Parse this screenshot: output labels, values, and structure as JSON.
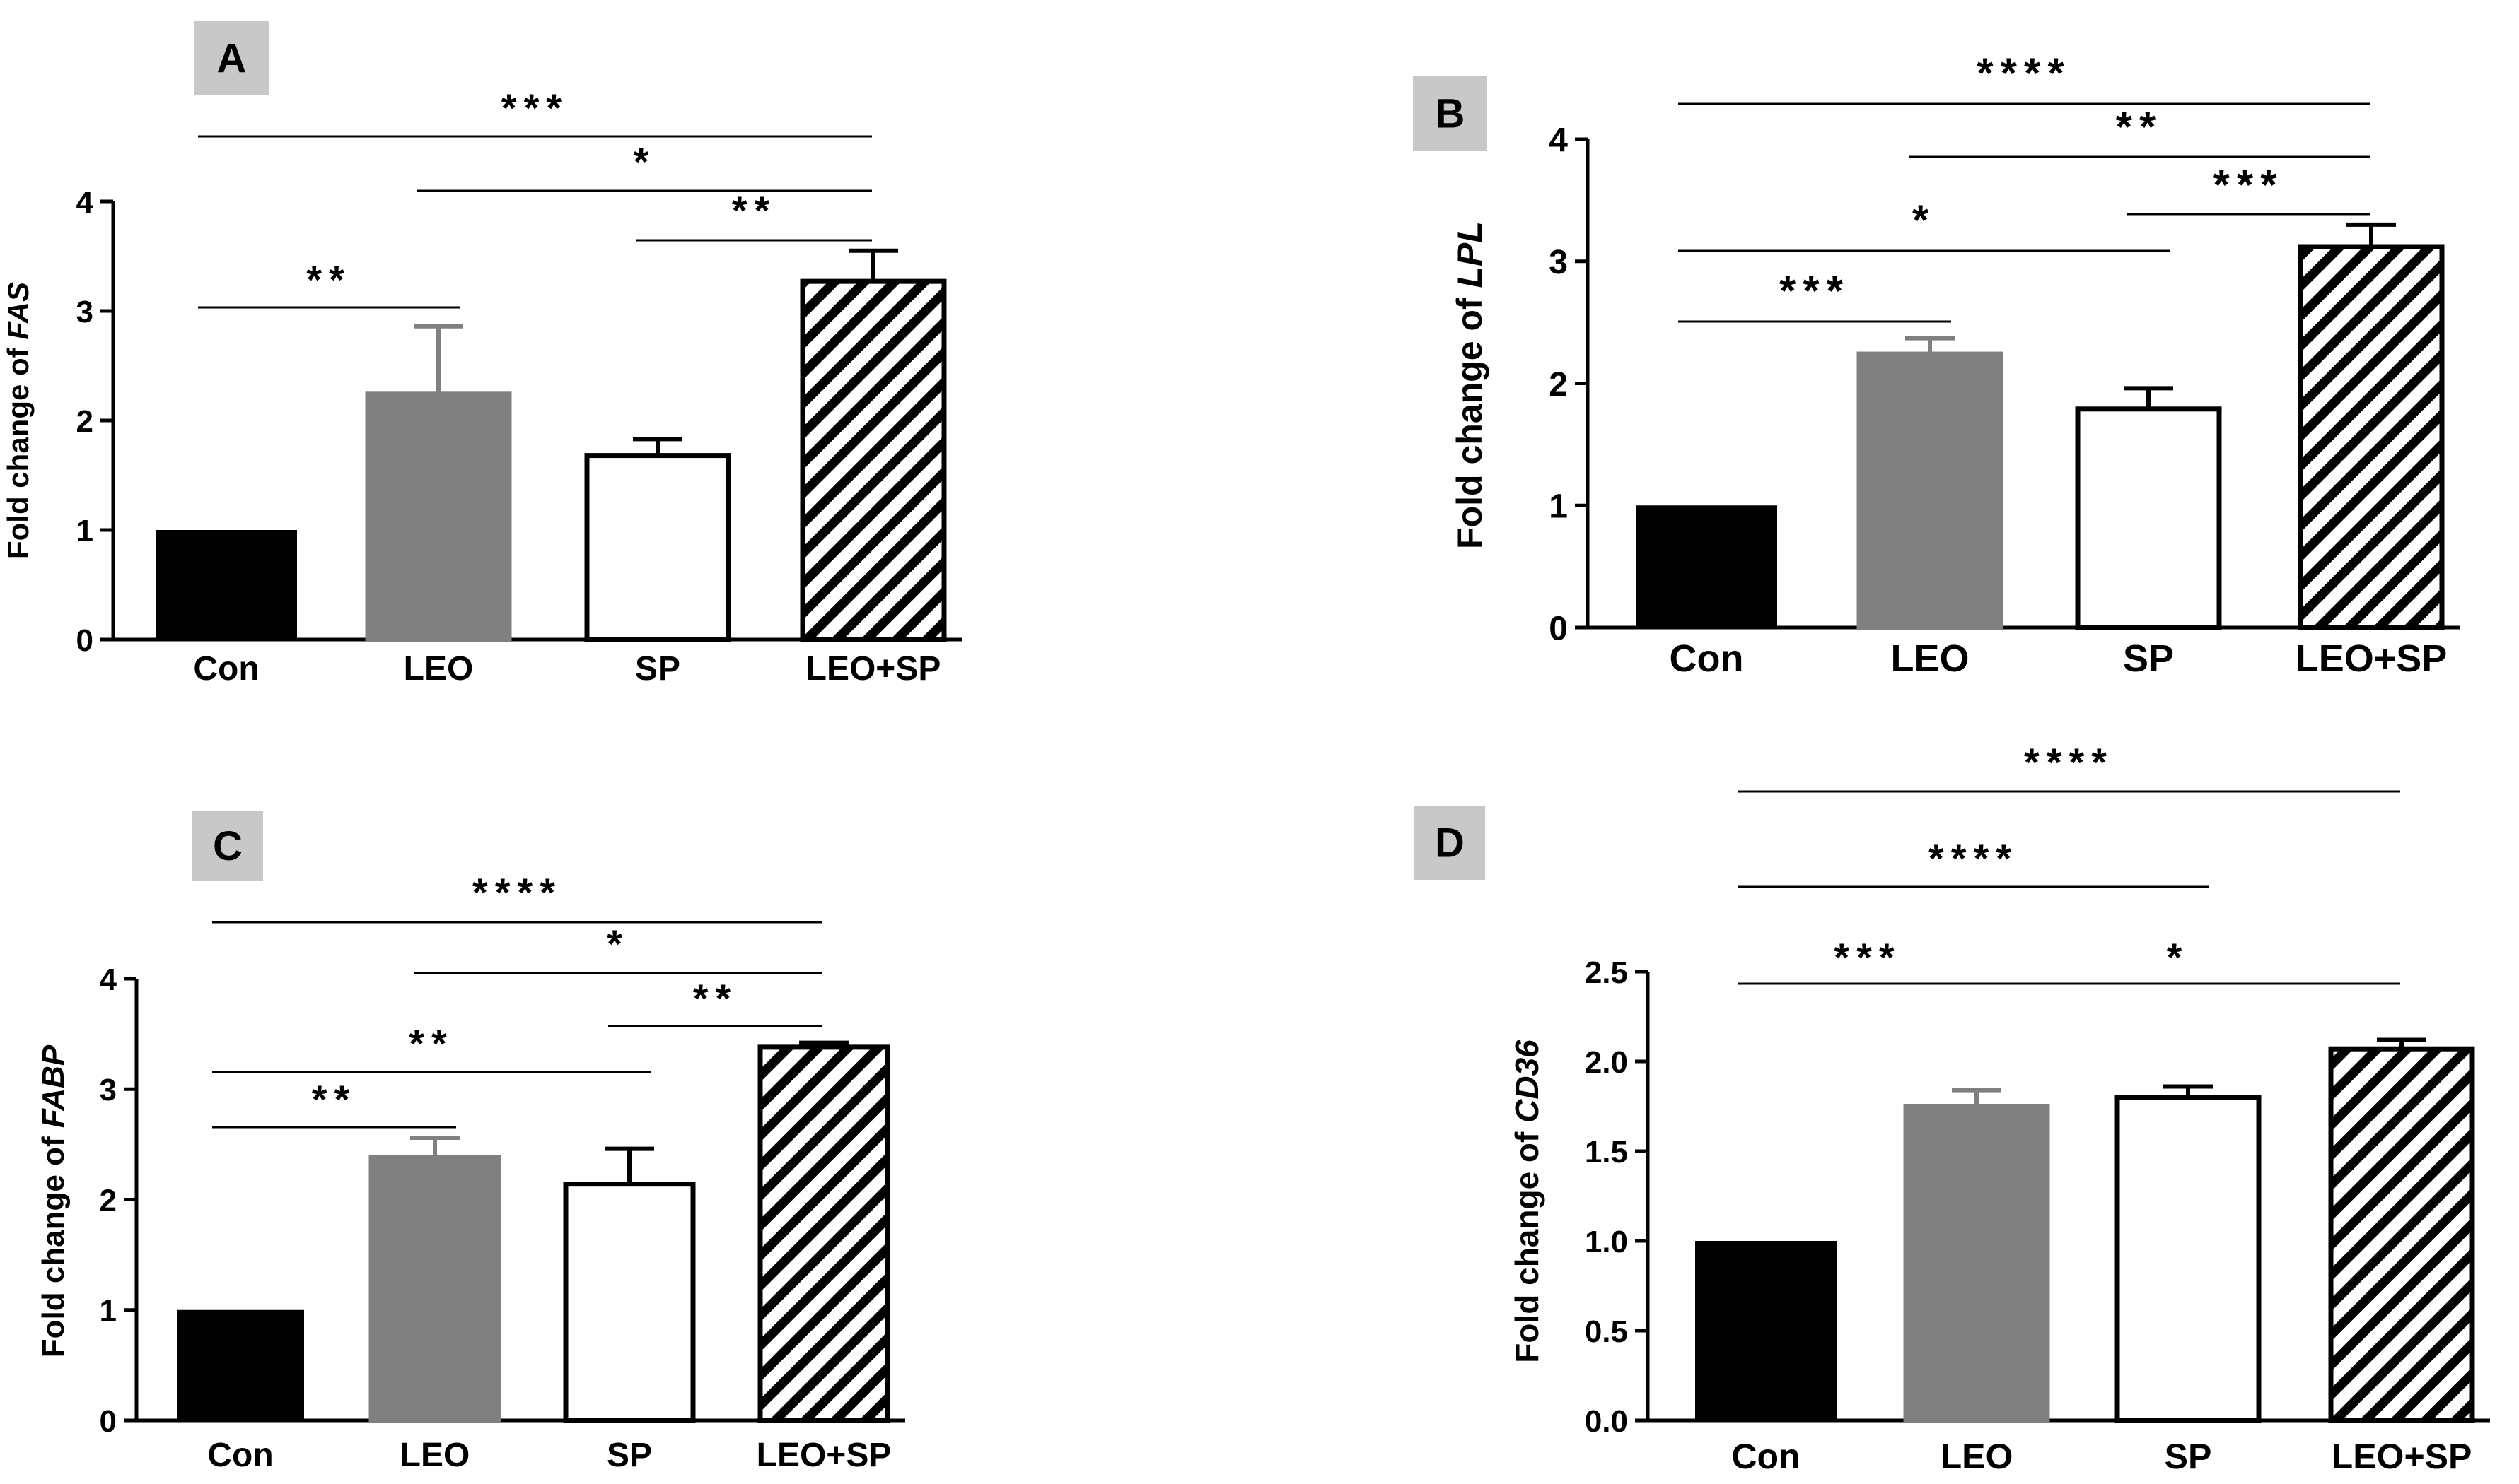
{
  "colors": {
    "con": "#000000",
    "leo": "#808080",
    "sp": "#ffffff",
    "leo_sp_hatch": "#000000",
    "panel_tag_bg": "#c8c8c8"
  },
  "chart_data": [
    {
      "panel": "A",
      "type": "bar",
      "ylabel_prefix": "Fold change of ",
      "ylabel_gene": "FAS",
      "categories": [
        "Con",
        "LEO",
        "SP",
        "LEO+SP"
      ],
      "values": [
        1.0,
        2.24,
        1.68,
        3.27
      ],
      "errors": [
        0,
        0.62,
        0.15,
        0.28
      ],
      "ylim": [
        0,
        4
      ],
      "yticks": [
        "0",
        "1",
        "2",
        "3",
        "4"
      ],
      "significance": [
        {
          "from": 0,
          "to": 1,
          "stars": "**"
        },
        {
          "from": 2,
          "to": 3,
          "stars": "**"
        },
        {
          "from": 1,
          "to": 3,
          "stars": "*"
        },
        {
          "from": 0,
          "to": 3,
          "stars": "***"
        }
      ]
    },
    {
      "panel": "B",
      "type": "bar",
      "ylabel_prefix": "Fold change of ",
      "ylabel_gene": "LPL",
      "categories": [
        "Con",
        "LEO",
        "SP",
        "LEO+SP"
      ],
      "values": [
        1.0,
        2.24,
        1.79,
        3.12
      ],
      "errors": [
        0,
        0.13,
        0.17,
        0.18
      ],
      "ylim": [
        0,
        4
      ],
      "yticks": [
        "0",
        "1",
        "2",
        "3",
        "4"
      ],
      "significance": [
        {
          "from": 0,
          "to": 1,
          "stars": "***"
        },
        {
          "from": 0,
          "to": 2,
          "stars": "*"
        },
        {
          "from": 2,
          "to": 3,
          "stars": "***"
        },
        {
          "from": 1,
          "to": 3,
          "stars": "**"
        },
        {
          "from": 0,
          "to": 3,
          "stars": "****"
        }
      ]
    },
    {
      "panel": "C",
      "type": "bar",
      "ylabel_prefix": "Fold change of ",
      "ylabel_gene": "FABP",
      "categories": [
        "Con",
        "LEO",
        "SP",
        "LEO+SP"
      ],
      "values": [
        1.0,
        2.38,
        2.14,
        3.38
      ],
      "errors": [
        0,
        0.18,
        0.32,
        0.04
      ],
      "ylim": [
        0,
        4
      ],
      "yticks": [
        "0",
        "1",
        "2",
        "3",
        "4"
      ],
      "significance": [
        {
          "from": 0,
          "to": 1,
          "stars": "**"
        },
        {
          "from": 0,
          "to": 2,
          "stars": "**"
        },
        {
          "from": 2,
          "to": 3,
          "stars": "**"
        },
        {
          "from": 1,
          "to": 3,
          "stars": "*"
        },
        {
          "from": 0,
          "to": 3,
          "stars": "****"
        }
      ]
    },
    {
      "panel": "D",
      "type": "bar",
      "ylabel_prefix": "Fold change of ",
      "ylabel_gene": "CD36",
      "categories": [
        "Con",
        "LEO",
        "SP",
        "LEO+SP"
      ],
      "values": [
        1.0,
        1.75,
        1.8,
        2.07
      ],
      "errors": [
        0,
        0.09,
        0.06,
        0.05
      ],
      "ylim": [
        0,
        2.5
      ],
      "yticks": [
        "0.0",
        "0.5",
        "1.0",
        "1.5",
        "2.0",
        "2.5"
      ],
      "significance": [
        {
          "from": 0,
          "to": 1,
          "stars": "***"
        },
        {
          "from": 1,
          "to": 3,
          "stars": "*"
        },
        {
          "from": 0,
          "to": 2,
          "stars": "****"
        },
        {
          "from": 0,
          "to": 3,
          "stars": "****"
        }
      ]
    }
  ]
}
